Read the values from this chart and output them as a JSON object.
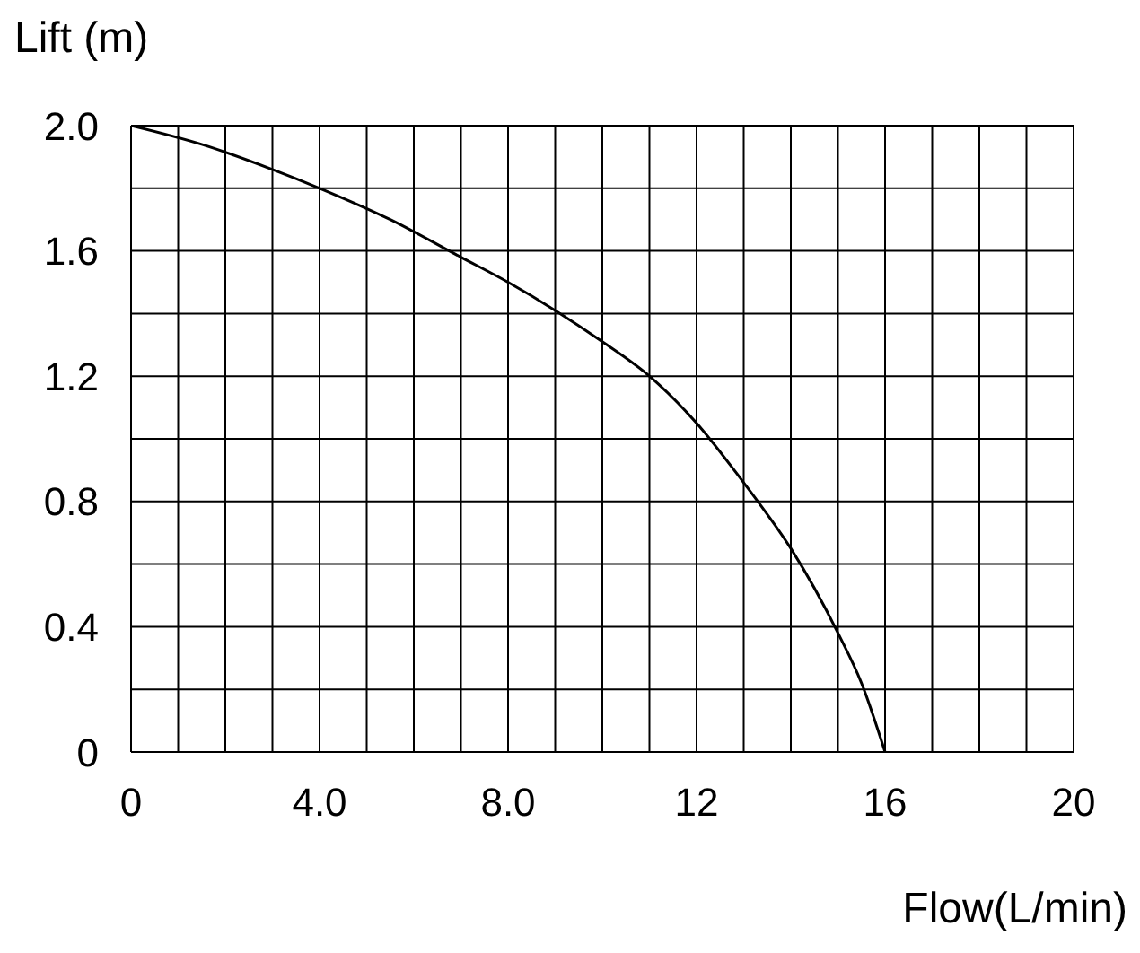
{
  "chart_data": {
    "type": "line",
    "xlabel": "Flow(L/min)",
    "ylabel": "Lift (m)",
    "x": [
      0,
      1.5,
      3,
      4,
      5.5,
      7,
      8,
      9,
      10,
      11,
      12,
      13,
      13.3,
      14,
      15,
      15.5,
      16
    ],
    "series": [
      {
        "color": "#000000",
        "values": [
          2.0,
          1.94,
          1.86,
          1.8,
          1.7,
          1.58,
          1.5,
          1.41,
          1.31,
          1.2,
          1.05,
          0.86,
          0.8,
          0.65,
          0.38,
          0.22,
          0
        ]
      }
    ],
    "xlim": [
      0,
      20
    ],
    "xticks": [
      0,
      {
        "value": 1,
        "label": null
      },
      {
        "value": 2,
        "label": null
      },
      {
        "value": 3,
        "label": null
      },
      {
        "value": 4,
        "label": "4.0"
      },
      {
        "value": 5,
        "label": null
      },
      {
        "value": 6,
        "label": null
      },
      {
        "value": 7,
        "label": null
      },
      {
        "value": 8,
        "label": "8.0"
      },
      {
        "value": 9,
        "label": null
      },
      {
        "value": 10,
        "label": null
      },
      {
        "value": 11,
        "label": null
      },
      12,
      {
        "value": 13,
        "label": null
      },
      {
        "value": 14,
        "label": null
      },
      {
        "value": 15,
        "label": null
      },
      16,
      {
        "value": 17,
        "label": null
      },
      {
        "value": 18,
        "label": null
      },
      {
        "value": 19,
        "label": null
      },
      20
    ],
    "ylim": [
      0,
      2.0
    ],
    "yticks": [
      0,
      {
        "value": 0.2,
        "label": null
      },
      0.4,
      {
        "value": 0.6,
        "label": null
      },
      0.8,
      {
        "value": 1.0,
        "label": null
      },
      1.2,
      {
        "value": 1.4,
        "label": null
      },
      1.6,
      {
        "value": 1.8,
        "label": null
      },
      {
        "value": 2.0,
        "label": "2.0"
      }
    ],
    "grid": true,
    "marker": "none",
    "line_style": "solid"
  }
}
